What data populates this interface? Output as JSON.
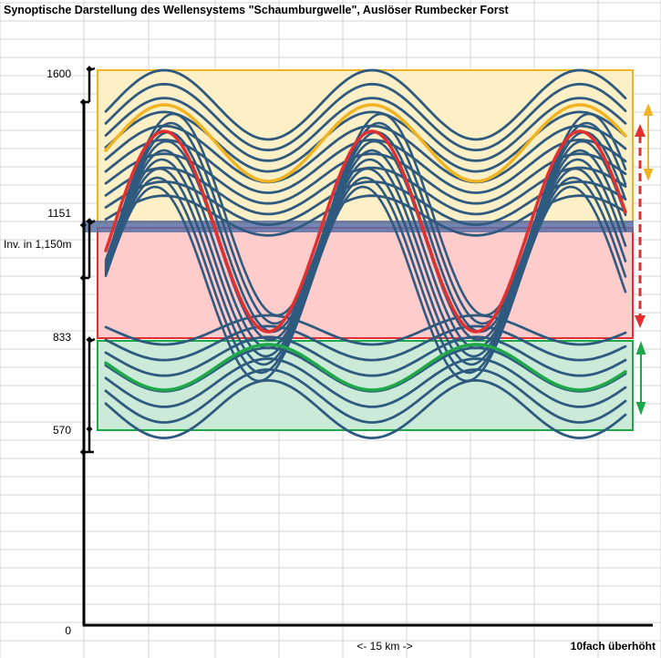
{
  "title": "Synoptische Darstellung des Wellensystems \"Schaumburgwelle\", Auslöser Rumbecker Forst",
  "y_labels": {
    "top": "1600",
    "inversion_top": "1151",
    "inversion": "Inv. in 1,150m",
    "middle": "833",
    "lower": "570",
    "zero": "0"
  },
  "x_label": "<- 15 km ->",
  "note": "10fach überhöht",
  "colors": {
    "wave": "#2f5a80",
    "upper_layer_fill": "#fdf0c6",
    "upper_layer_border": "#f0b321",
    "middle_layer_fill": "#ffcccc",
    "middle_layer_border": "#e03030",
    "lower_layer_fill": "#cbead8",
    "lower_layer_border": "#1fa84a",
    "inversion_band": "#5b70a8",
    "grid": "#d4d4d4"
  }
}
